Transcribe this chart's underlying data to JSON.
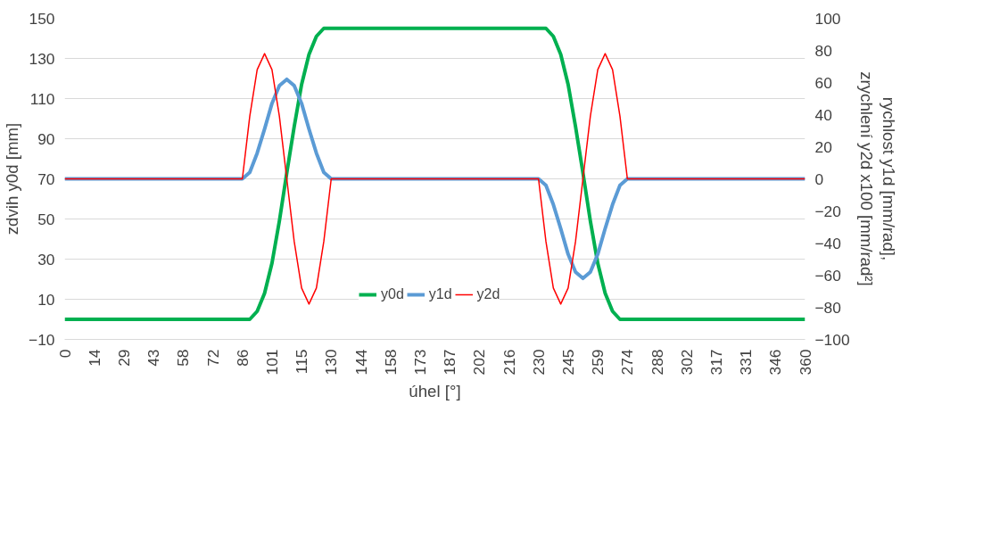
{
  "chart_data": {
    "type": "line",
    "xlabel": "úhel [°]",
    "ylabel": "zdvih y0d [mm]",
    "y2label": "rychlost y1d [mm/rad],\nzrychlení y2d x100 [mm/rad²]",
    "x": [
      0,
      86.4,
      90,
      93.6,
      97.2,
      100.8,
      104.4,
      108,
      111.6,
      115.2,
      118.8,
      122.4,
      126,
      129.6,
      230.4,
      234,
      237.6,
      241.2,
      244.8,
      248.4,
      252,
      255.6,
      259.2,
      262.8,
      266.4,
      270,
      273.6,
      360
    ],
    "series": [
      {
        "name": "y0d",
        "color": "#00b050",
        "values": [
          0,
          0,
          0,
          4,
          13,
          28,
          49,
          73,
          96,
          117,
          132,
          141,
          145,
          145,
          145,
          145,
          141,
          132,
          117,
          96,
          73,
          49,
          28,
          13,
          4,
          0,
          0,
          0
        ]
      },
      {
        "name": "y1d",
        "color": "#5b9bd5",
        "axis": "y2",
        "values": [
          0,
          0,
          4,
          16,
          31,
          47,
          58,
          62,
          58,
          47,
          31,
          16,
          4,
          0,
          0,
          -4,
          -16,
          -31,
          -47,
          -58,
          -62,
          -58,
          -47,
          -31,
          -16,
          -4,
          0,
          0
        ]
      },
      {
        "name": "y2d",
        "color": "#ff0000",
        "axis": "y2",
        "values": [
          0,
          0,
          39,
          68,
          78,
          68,
          39,
          0,
          -39,
          -68,
          -78,
          -68,
          -39,
          0,
          0,
          -39,
          -68,
          -78,
          -68,
          -39,
          0,
          39,
          68,
          78,
          68,
          39,
          0,
          0
        ]
      }
    ],
    "xlim": [
      0,
      360
    ],
    "xticks": [
      0,
      {
        "value": 14.4,
        "label": "14"
      },
      {
        "value": 28.8,
        "label": "29"
      },
      {
        "value": 43.2,
        "label": "43"
      },
      {
        "value": 57.6,
        "label": "58"
      },
      {
        "value": 72,
        "label": "72"
      },
      {
        "value": 86.4,
        "label": "86"
      },
      {
        "value": 100.8,
        "label": "101"
      },
      {
        "value": 115.2,
        "label": "115"
      },
      {
        "value": 129.6,
        "label": "130"
      },
      {
        "value": 144,
        "label": "144"
      },
      {
        "value": 158.4,
        "label": "158"
      },
      {
        "value": 172.8,
        "label": "173"
      },
      {
        "value": 187.2,
        "label": "187"
      },
      {
        "value": 201.6,
        "label": "202"
      },
      {
        "value": 216,
        "label": "216"
      },
      {
        "value": 230.4,
        "label": "230"
      },
      {
        "value": 244.8,
        "label": "245"
      },
      {
        "value": 259.2,
        "label": "259"
      },
      {
        "value": 273.6,
        "label": "274"
      },
      {
        "value": 288,
        "label": "288"
      },
      {
        "value": 302.4,
        "label": "302"
      },
      {
        "value": 316.8,
        "label": "317"
      },
      {
        "value": 331.2,
        "label": "331"
      },
      {
        "value": 345.6,
        "label": "346"
      },
      360
    ],
    "ylim": [
      -10,
      150
    ],
    "yticks": [
      -10,
      10,
      30,
      50,
      70,
      90,
      110,
      130,
      150
    ],
    "y2lim": [
      -100,
      100
    ],
    "y2ticks": [
      -100,
      -80,
      -60,
      -40,
      -20,
      0,
      20,
      40,
      60,
      80,
      100
    ],
    "grid": "y",
    "legend": "bottom",
    "marker": "none",
    "line_style": "solid"
  }
}
